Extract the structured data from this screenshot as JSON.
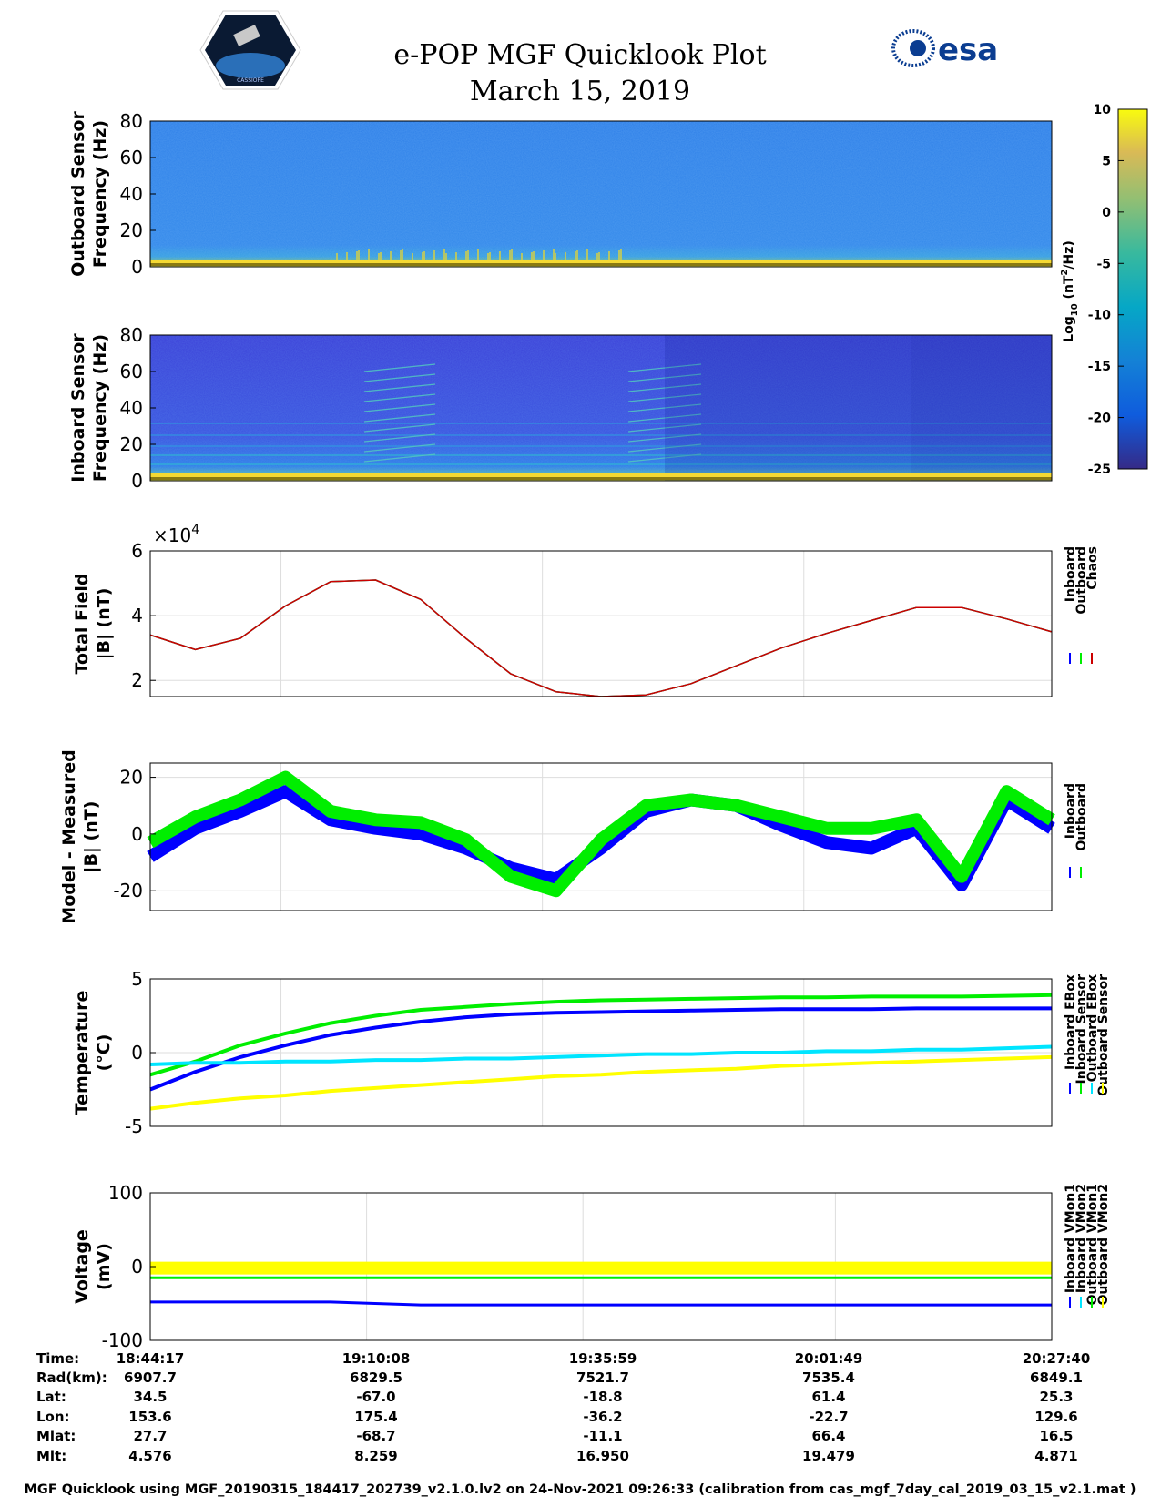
{
  "header": {
    "title_line1": "e-POP MGF Quicklook Plot",
    "title_line2": "March 15, 2019",
    "logo_left_label": "CASSIOPE",
    "logo_right_label": "esa"
  },
  "colors": {
    "inboard": "#0000ff",
    "outboard": "#00ee00",
    "chaos": "#cc0000",
    "cyan": "#00e5ff",
    "yellow": "#ffff00"
  },
  "colorbar": {
    "label": "Log10 (nT2/Hz)",
    "label_main": "Log",
    "label_sub": "10",
    "label_mid": " (nT",
    "label_sup": "2",
    "label_end": "/Hz)",
    "ticks": [
      "10",
      "5",
      "0",
      "-5",
      "-10",
      "-15",
      "-20",
      "-25"
    ]
  },
  "chart_data": [
    {
      "type": "heatmap",
      "title": "",
      "ylabel": "Outboard Sensor Frequency (Hz)",
      "ylabel_line1": "Outboard Sensor",
      "ylabel_line2": "Frequency (Hz)",
      "ylim": [
        0,
        80
      ],
      "yticks": [
        "80",
        "60",
        "40",
        "20",
        "0"
      ],
      "zlim": [
        -25,
        10
      ]
    },
    {
      "type": "heatmap",
      "title": "",
      "ylabel": "Inboard Sensor Frequency (Hz)",
      "ylabel_line1": "Inboard Sensor",
      "ylabel_line2": "Frequency (Hz)",
      "ylim": [
        0,
        80
      ],
      "yticks": [
        "80",
        "60",
        "40",
        "20",
        "0"
      ],
      "zlim": [
        -25,
        10
      ]
    },
    {
      "type": "line",
      "ylabel": "Total Field |B| (nT)",
      "ylabel_line1": "Total Field",
      "ylabel_line2": "|B| (nT)",
      "exponent_label": "×10",
      "exponent_sup": "4",
      "ylim": [
        1.5,
        6
      ],
      "yticks": [
        "6",
        "4",
        "2"
      ],
      "x": [
        0,
        0.05,
        0.1,
        0.15,
        0.2,
        0.25,
        0.3,
        0.35,
        0.4,
        0.45,
        0.5,
        0.55,
        0.6,
        0.65,
        0.7,
        0.75,
        0.8,
        0.85,
        0.9,
        0.95,
        1.0
      ],
      "series": [
        {
          "name": "Inboard",
          "values": [
            3.4,
            2.95,
            3.3,
            4.3,
            5.05,
            5.1,
            4.5,
            3.3,
            2.2,
            1.65,
            1.5,
            1.55,
            1.9,
            2.45,
            3.0,
            3.45,
            3.85,
            4.25,
            4.25,
            3.9,
            3.5
          ]
        },
        {
          "name": "Outboard",
          "values": [
            3.4,
            2.95,
            3.3,
            4.3,
            5.05,
            5.1,
            4.5,
            3.3,
            2.2,
            1.65,
            1.5,
            1.55,
            1.9,
            2.45,
            3.0,
            3.45,
            3.85,
            4.25,
            4.25,
            3.9,
            3.5
          ]
        },
        {
          "name": "Chaos",
          "values": [
            3.4,
            2.95,
            3.3,
            4.3,
            5.05,
            5.1,
            4.5,
            3.3,
            2.2,
            1.65,
            1.5,
            1.55,
            1.9,
            2.45,
            3.0,
            3.45,
            3.85,
            4.25,
            4.25,
            3.9,
            3.5
          ]
        }
      ],
      "legend": [
        "Inboard",
        "Outboard",
        "Chaos"
      ]
    },
    {
      "type": "line",
      "ylabel": "Model - Measured |B| (nT)",
      "ylabel_line1": "Model - Measured",
      "ylabel_line2": "|B| (nT)",
      "ylim": [
        -27,
        25
      ],
      "yticks": [
        "20",
        "0",
        "-20"
      ],
      "x": [
        0,
        0.05,
        0.1,
        0.15,
        0.2,
        0.25,
        0.3,
        0.35,
        0.4,
        0.45,
        0.5,
        0.55,
        0.6,
        0.65,
        0.7,
        0.75,
        0.8,
        0.85,
        0.9,
        0.95,
        1.0
      ],
      "series": [
        {
          "name": "Inboard",
          "values": [
            -8,
            2,
            8,
            15,
            5,
            2,
            0,
            -5,
            -12,
            -16,
            -5,
            8,
            12,
            10,
            3,
            -3,
            -5,
            2,
            -18,
            12,
            2
          ]
        },
        {
          "name": "Outboard",
          "values": [
            -3,
            6,
            12,
            20,
            8,
            5,
            4,
            -2,
            -15,
            -20,
            -2,
            10,
            12,
            10,
            6,
            2,
            2,
            5,
            -15,
            15,
            5
          ]
        }
      ],
      "legend": [
        "Inboard",
        "Outboard"
      ]
    },
    {
      "type": "line",
      "ylabel": "Temperature (°C)",
      "ylabel_line1": "Temperature",
      "ylabel_line2": "(°C)",
      "ylim": [
        -5,
        5
      ],
      "yticks": [
        "5",
        "0",
        "-5"
      ],
      "x": [
        0,
        0.05,
        0.1,
        0.15,
        0.2,
        0.25,
        0.3,
        0.35,
        0.4,
        0.45,
        0.5,
        0.55,
        0.6,
        0.65,
        0.7,
        0.75,
        0.8,
        0.85,
        0.9,
        0.95,
        1.0
      ],
      "series": [
        {
          "name": "Inboard EBox",
          "values": [
            -2.5,
            -1.3,
            -0.3,
            0.5,
            1.2,
            1.7,
            2.1,
            2.4,
            2.6,
            2.7,
            2.75,
            2.8,
            2.85,
            2.9,
            2.95,
            2.95,
            2.95,
            3.0,
            3.0,
            3.0,
            3.0
          ]
        },
        {
          "name": "Inboard Sensor",
          "values": [
            -1.5,
            -0.6,
            0.5,
            1.3,
            2.0,
            2.5,
            2.9,
            3.1,
            3.3,
            3.45,
            3.55,
            3.6,
            3.65,
            3.7,
            3.75,
            3.75,
            3.8,
            3.8,
            3.8,
            3.85,
            3.9
          ]
        },
        {
          "name": "Outboard EBox",
          "values": [
            -0.8,
            -0.7,
            -0.7,
            -0.6,
            -0.6,
            -0.5,
            -0.5,
            -0.4,
            -0.4,
            -0.3,
            -0.2,
            -0.1,
            -0.1,
            0.0,
            0.0,
            0.1,
            0.1,
            0.2,
            0.2,
            0.3,
            0.4
          ]
        },
        {
          "name": "Outboard Sensor",
          "values": [
            -3.8,
            -3.4,
            -3.1,
            -2.9,
            -2.6,
            -2.4,
            -2.2,
            -2.0,
            -1.8,
            -1.6,
            -1.5,
            -1.3,
            -1.2,
            -1.1,
            -0.9,
            -0.8,
            -0.7,
            -0.6,
            -0.5,
            -0.4,
            -0.3
          ]
        }
      ],
      "legend": [
        "Inboard EBox",
        "Inboard Sensor",
        "Outboard EBox",
        "Outboard Sensor"
      ]
    },
    {
      "type": "line",
      "ylabel": "Voltage (mV)",
      "ylabel_line1": "Voltage",
      "ylabel_line2": "(mV)",
      "ylim": [
        -100,
        100
      ],
      "yticks": [
        "100",
        "0",
        "-100"
      ],
      "x": [
        0,
        0.1,
        0.2,
        0.3,
        0.4,
        0.5,
        0.6,
        0.7,
        0.8,
        0.9,
        1.0
      ],
      "series": [
        {
          "name": "Inboard VMon1",
          "values": [
            -48,
            -48,
            -48,
            -52,
            -52,
            -52,
            -52,
            -52,
            -52,
            -52,
            -52
          ]
        },
        {
          "name": "Inboard VMon2",
          "values": [
            0,
            0,
            0,
            0,
            0,
            0,
            0,
            0,
            0,
            0,
            0
          ]
        },
        {
          "name": "Outboard VMon1",
          "values": [
            -15,
            -15,
            -15,
            -15,
            -15,
            -15,
            -15,
            -15,
            -15,
            -15,
            -15
          ]
        },
        {
          "name": "Outboard VMon2",
          "values": [
            -2,
            -2,
            -2,
            -2,
            -2,
            -2,
            -2,
            -2,
            -2,
            -2,
            -2
          ]
        }
      ],
      "legend": [
        "Inboard VMon1",
        "Inboard VMon2",
        "Outboard VMon1",
        "Outboard VMon2"
      ]
    }
  ],
  "info_table": {
    "row_labels": [
      "Time:",
      "Rad(km):",
      "Lat:",
      "Lon:",
      "Mlat:",
      "Mlt:"
    ],
    "columns": [
      [
        "18:44:17",
        "6907.7",
        "34.5",
        "153.6",
        "27.7",
        "4.576"
      ],
      [
        "19:10:08",
        "6829.5",
        "-67.0",
        "175.4",
        "-68.7",
        "8.259"
      ],
      [
        "19:35:59",
        "7521.7",
        "-18.8",
        "-36.2",
        "-11.1",
        "16.950"
      ],
      [
        "20:01:49",
        "7535.4",
        "61.4",
        "-22.7",
        "66.4",
        "19.479"
      ],
      [
        "20:27:40",
        "6849.1",
        "25.3",
        "129.6",
        "16.5",
        "4.871"
      ]
    ]
  },
  "footer": "MGF Quicklook using MGF_20190315_184417_202739_v2.1.0.lv2 on 24-Nov-2021 09:26:33 (calibration from cas_mgf_7day_cal_2019_03_15_v2.1.mat )"
}
